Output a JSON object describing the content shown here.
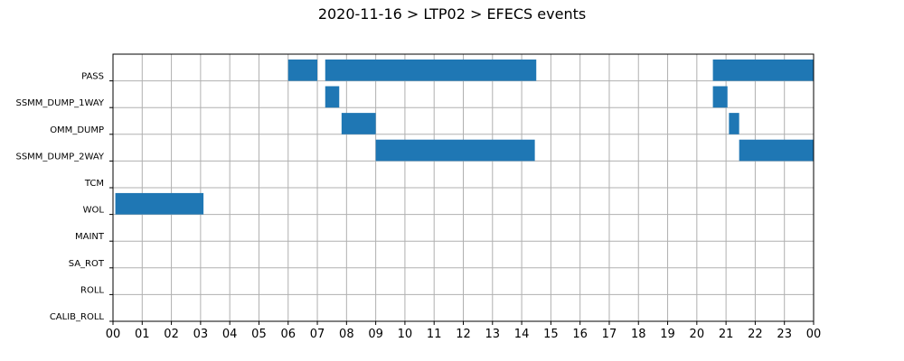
{
  "chart_data": {
    "type": "gantt",
    "title": "2020-11-16 > LTP02 > EFECS events",
    "categories": [
      "PASS",
      "SSMM_DUMP_1WAY",
      "OMM_DUMP",
      "SSMM_DUMP_2WAY",
      "TCM",
      "WOL",
      "MAINT",
      "SA_ROT",
      "ROLL",
      "CALIB_ROLL"
    ],
    "x_ticks": [
      "00",
      "01",
      "02",
      "03",
      "04",
      "05",
      "06",
      "07",
      "08",
      "09",
      "10",
      "11",
      "12",
      "13",
      "14",
      "15",
      "16",
      "17",
      "18",
      "19",
      "20",
      "21",
      "22",
      "23",
      "00"
    ],
    "xlim_hours": [
      0,
      24
    ],
    "grid": true,
    "bar_color": "#1f77b4",
    "events": [
      {
        "category": "PASS",
        "start_hour": 6.0,
        "end_hour": 7.0
      },
      {
        "category": "PASS",
        "start_hour": 7.27,
        "end_hour": 14.5
      },
      {
        "category": "PASS",
        "start_hour": 20.55,
        "end_hour": 24.0
      },
      {
        "category": "SSMM_DUMP_1WAY",
        "start_hour": 7.27,
        "end_hour": 7.75
      },
      {
        "category": "SSMM_DUMP_1WAY",
        "start_hour": 20.55,
        "end_hour": 21.05
      },
      {
        "category": "OMM_DUMP",
        "start_hour": 7.83,
        "end_hour": 9.0
      },
      {
        "category": "OMM_DUMP",
        "start_hour": 21.1,
        "end_hour": 21.45
      },
      {
        "category": "SSMM_DUMP_2WAY",
        "start_hour": 9.0,
        "end_hour": 14.45
      },
      {
        "category": "SSMM_DUMP_2WAY",
        "start_hour": 21.45,
        "end_hour": 24.0
      },
      {
        "category": "WOL",
        "start_hour": 0.08,
        "end_hour": 3.1
      }
    ]
  }
}
